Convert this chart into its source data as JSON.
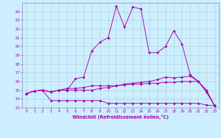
{
  "xlabel": "Windchill (Refroidissement éolien,°C)",
  "ylabel": "",
  "xlim": [
    -0.5,
    23.5
  ],
  "ylim": [
    13,
    25
  ],
  "yticks": [
    13,
    14,
    15,
    16,
    17,
    18,
    19,
    20,
    21,
    22,
    23,
    24
  ],
  "xticks": [
    0,
    1,
    2,
    3,
    4,
    5,
    6,
    7,
    8,
    9,
    10,
    11,
    12,
    13,
    14,
    15,
    16,
    17,
    18,
    19,
    20,
    21,
    22,
    23
  ],
  "background_color": "#cceeff",
  "grid_color": "#aacccc",
  "line_color": "#aa00aa",
  "spine_color": "#8888aa",
  "lines": [
    {
      "x": [
        0,
        1,
        2,
        3,
        4,
        5,
        6,
        7,
        8,
        9,
        10,
        11,
        12,
        13,
        14,
        15,
        16,
        17,
        18,
        19,
        20,
        21,
        22,
        23
      ],
      "y": [
        14.6,
        14.9,
        15.0,
        14.8,
        15.0,
        15.0,
        16.3,
        16.5,
        19.5,
        20.5,
        21.0,
        24.6,
        22.2,
        24.5,
        24.3,
        19.3,
        19.3,
        20.0,
        21.8,
        20.3,
        16.8,
        16.0,
        14.8,
        13.2
      ]
    },
    {
      "x": [
        0,
        1,
        2,
        3,
        4,
        5,
        6,
        7,
        8,
        9,
        10,
        11,
        12,
        13,
        14,
        15,
        16,
        17,
        18,
        19,
        20,
        21,
        22,
        23
      ],
      "y": [
        14.6,
        14.9,
        15.0,
        14.8,
        15.0,
        15.0,
        15.0,
        15.0,
        15.0,
        15.2,
        15.3,
        15.5,
        15.7,
        15.8,
        15.9,
        16.0,
        16.2,
        16.5,
        16.4,
        16.5,
        16.6,
        16.0,
        14.8,
        13.2
      ]
    },
    {
      "x": [
        0,
        1,
        2,
        3,
        4,
        5,
        6,
        7,
        8,
        9,
        10,
        11,
        12,
        13,
        14,
        15,
        16,
        17,
        18,
        19,
        20,
        21,
        22,
        23
      ],
      "y": [
        14.6,
        14.9,
        15.0,
        13.8,
        13.8,
        13.8,
        13.8,
        13.8,
        13.8,
        13.8,
        13.5,
        13.5,
        13.5,
        13.5,
        13.5,
        13.5,
        13.5,
        13.5,
        13.5,
        13.5,
        13.5,
        13.5,
        13.3,
        13.2
      ]
    },
    {
      "x": [
        0,
        1,
        2,
        3,
        4,
        5,
        6,
        7,
        8,
        9,
        10,
        11,
        12,
        13,
        14,
        15,
        16,
        17,
        18,
        19,
        20,
        21,
        22,
        23
      ],
      "y": [
        14.6,
        14.9,
        15.0,
        14.8,
        15.0,
        15.2,
        15.2,
        15.3,
        15.5,
        15.5,
        15.5,
        15.5,
        15.6,
        15.7,
        15.7,
        15.8,
        15.8,
        15.9,
        15.9,
        16.0,
        16.0,
        16.0,
        15.0,
        13.2
      ]
    }
  ]
}
